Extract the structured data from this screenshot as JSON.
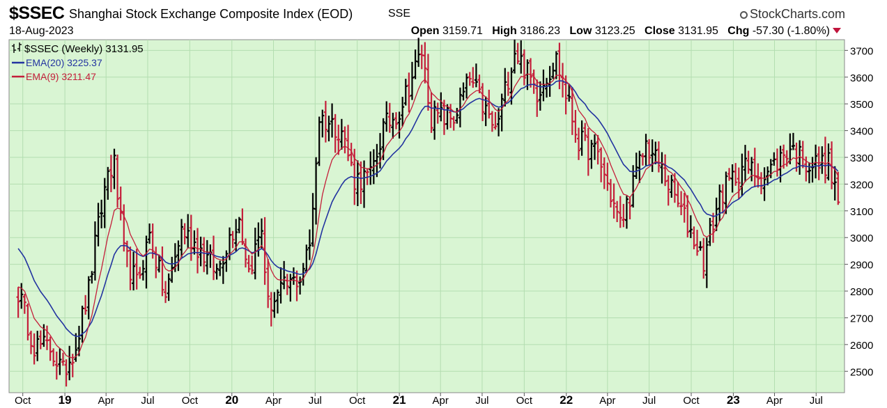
{
  "header": {
    "symbol": "$SSEC",
    "name": "Shanghai Stock Exchange Composite Index (EOD)",
    "exchange": "SSE",
    "brand": "StockCharts.com",
    "date": "18-Aug-2023",
    "open_label": "Open",
    "open": "3159.71",
    "high_label": "High",
    "high": "3186.23",
    "low_label": "Low",
    "low": "3123.25",
    "close_label": "Close",
    "close": "3131.95",
    "chg_label": "Chg",
    "chg": "-57.30 (-1.80%)"
  },
  "colors": {
    "plot_bg": "#d9f5d3",
    "grid": "#b3ddb0",
    "up_bar": "#000000",
    "down_bar": "#c41e3a",
    "ema20": "#2233a0",
    "ema9": "#c41e3a"
  },
  "chart_data": {
    "type": "line",
    "subtype": "ohlc-bars",
    "frequency": "weekly",
    "ylim": [
      2420,
      3740
    ],
    "y_ticks": [
      2500,
      2600,
      2700,
      2800,
      2900,
      3000,
      3100,
      3200,
      3300,
      3400,
      3500,
      3600,
      3700
    ],
    "x_ticks": [
      "Oct",
      "19",
      "Apr",
      "Jul",
      "Oct",
      "20",
      "Apr",
      "Jul",
      "Oct",
      "21",
      "Apr",
      "Jul",
      "Oct",
      "22",
      "Apr",
      "Jul",
      "Oct",
      "23",
      "Apr",
      "Jul"
    ],
    "grid": true,
    "legend_position": "top-left",
    "legend": {
      "price_label": "$SSEC (Weekly) 3131.95",
      "ema20_label": "EMA(20) 3225.37",
      "ema9_label": "EMA(9) 3211.47"
    },
    "weeks": [
      {
        "date": "2018-09-21",
        "close": 2797
      },
      {
        "date": "2018-10-26",
        "close": 2599
      },
      {
        "date": "2018-11-30",
        "close": 2588
      },
      {
        "date": "2018-12-28",
        "close": 2494
      },
      {
        "date": "2019-01-25",
        "close": 2601
      },
      {
        "date": "2019-02-22",
        "close": 2804
      },
      {
        "date": "2019-03-08",
        "close": 2969
      },
      {
        "date": "2019-04-05",
        "close": 3247
      },
      {
        "date": "2019-04-19",
        "close": 3270
      },
      {
        "date": "2019-05-10",
        "close": 2939
      },
      {
        "date": "2019-06-07",
        "close": 2827
      },
      {
        "date": "2019-07-05",
        "close": 3011
      },
      {
        "date": "2019-08-09",
        "close": 2775
      },
      {
        "date": "2019-09-13",
        "close": 3031
      },
      {
        "date": "2019-10-25",
        "close": 2954
      },
      {
        "date": "2019-11-29",
        "close": 2872
      },
      {
        "date": "2019-12-27",
        "close": 3005
      },
      {
        "date": "2020-01-17",
        "close": 3075
      },
      {
        "date": "2020-02-07",
        "close": 2876
      },
      {
        "date": "2020-03-06",
        "close": 3034
      },
      {
        "date": "2020-03-20",
        "close": 2745
      },
      {
        "date": "2020-04-24",
        "close": 2808
      },
      {
        "date": "2020-05-29",
        "close": 2852
      },
      {
        "date": "2020-06-19",
        "close": 2967
      },
      {
        "date": "2020-07-10",
        "close": 3450
      },
      {
        "date": "2020-08-28",
        "close": 3403
      },
      {
        "date": "2020-09-25",
        "close": 3219
      },
      {
        "date": "2020-10-30",
        "close": 3225
      },
      {
        "date": "2020-11-27",
        "close": 3408
      },
      {
        "date": "2020-12-31",
        "close": 3473
      },
      {
        "date": "2021-02-19",
        "close": 3696
      },
      {
        "date": "2021-03-12",
        "close": 3453
      },
      {
        "date": "2021-04-30",
        "close": 3447
      },
      {
        "date": "2021-06-04",
        "close": 3592
      },
      {
        "date": "2021-07-30",
        "close": 3397
      },
      {
        "date": "2021-09-10",
        "close": 3703
      },
      {
        "date": "2021-10-29",
        "close": 3547
      },
      {
        "date": "2021-12-10",
        "close": 3667
      },
      {
        "date": "2022-01-28",
        "close": 3361
      },
      {
        "date": "2022-03-11",
        "close": 3309
      },
      {
        "date": "2022-04-29",
        "close": 3047
      },
      {
        "date": "2022-06-24",
        "close": 3349
      },
      {
        "date": "2022-07-29",
        "close": 3253
      },
      {
        "date": "2022-09-30",
        "close": 3024
      },
      {
        "date": "2022-10-28",
        "close": 2915
      },
      {
        "date": "2022-12-02",
        "close": 3156
      },
      {
        "date": "2023-01-20",
        "close": 3265
      },
      {
        "date": "2023-03-10",
        "close": 3230
      },
      {
        "date": "2023-05-05",
        "close": 3338
      },
      {
        "date": "2023-06-16",
        "close": 3273
      },
      {
        "date": "2023-07-28",
        "close": 3276
      },
      {
        "date": "2023-08-18",
        "close": 3132
      }
    ]
  }
}
